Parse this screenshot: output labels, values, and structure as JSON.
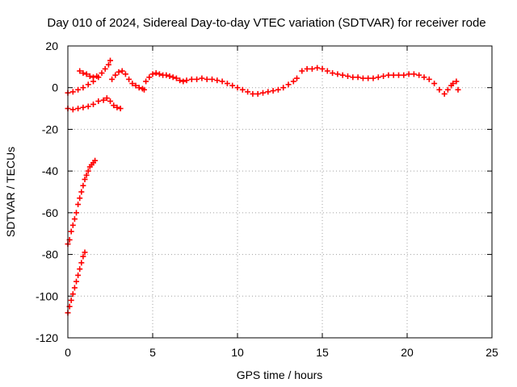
{
  "chart_data": {
    "type": "scatter",
    "title": "Day 010 of 2024, Sidereal Day-to-day VTEC variation (SDTVAR) for receiver rode",
    "xlabel": "GPS time / hours",
    "ylabel": "SDTVAR / TECUs",
    "xlim": [
      0,
      25
    ],
    "ylim": [
      -120,
      20
    ],
    "xticks": [
      0,
      5,
      10,
      15,
      20,
      25
    ],
    "yticks": [
      20,
      0,
      -20,
      -40,
      -60,
      -80,
      -100,
      -120
    ],
    "grid": true,
    "marker": "plus",
    "color": "#ff0000",
    "series": [
      {
        "points": [
          [
            0.0,
            -75
          ],
          [
            0.1,
            -73
          ],
          [
            0.2,
            -69
          ],
          [
            0.3,
            -66
          ],
          [
            0.4,
            -63
          ],
          [
            0.5,
            -60
          ],
          [
            0.6,
            -56
          ],
          [
            0.7,
            -53
          ],
          [
            0.8,
            -50
          ],
          [
            0.9,
            -47
          ],
          [
            1.0,
            -44
          ],
          [
            1.1,
            -42
          ],
          [
            1.2,
            -40
          ],
          [
            1.3,
            -38
          ],
          [
            1.4,
            -37
          ],
          [
            1.5,
            -36
          ],
          [
            1.6,
            -35
          ],
          [
            0.0,
            -108
          ],
          [
            0.1,
            -105
          ],
          [
            0.2,
            -102
          ],
          [
            0.3,
            -99
          ],
          [
            0.4,
            -96
          ],
          [
            0.5,
            -93
          ],
          [
            0.6,
            -90
          ],
          [
            0.7,
            -87
          ],
          [
            0.8,
            -84
          ],
          [
            0.9,
            -81
          ],
          [
            1.0,
            -79
          ],
          [
            0.0,
            -10
          ],
          [
            0.3,
            -10.5
          ],
          [
            0.6,
            -10
          ],
          [
            0.9,
            -9.5
          ],
          [
            1.2,
            -9
          ],
          [
            1.5,
            -8
          ],
          [
            1.8,
            -6.5
          ],
          [
            2.1,
            -6
          ],
          [
            2.3,
            -5
          ],
          [
            2.5,
            -6.5
          ],
          [
            2.7,
            -8.5
          ],
          [
            2.9,
            -9.5
          ],
          [
            3.1,
            -10
          ],
          [
            0.0,
            -2.5
          ],
          [
            0.3,
            -2
          ],
          [
            0.6,
            -1
          ],
          [
            0.9,
            0
          ],
          [
            1.2,
            1.5
          ],
          [
            1.5,
            3
          ],
          [
            1.8,
            5
          ],
          [
            2.0,
            7
          ],
          [
            2.2,
            9
          ],
          [
            2.4,
            11
          ],
          [
            2.5,
            13
          ],
          [
            0.7,
            8
          ],
          [
            0.9,
            7
          ],
          [
            1.1,
            6.5
          ],
          [
            1.3,
            5.5
          ],
          [
            1.5,
            5
          ],
          [
            1.7,
            5.5
          ],
          [
            2.6,
            4
          ],
          [
            2.8,
            6
          ],
          [
            3.0,
            7.5
          ],
          [
            3.2,
            8
          ],
          [
            3.4,
            6.5
          ],
          [
            3.6,
            4
          ],
          [
            3.8,
            2
          ],
          [
            4.0,
            1
          ],
          [
            4.2,
            0
          ],
          [
            4.4,
            -0.5
          ],
          [
            4.5,
            -1
          ],
          [
            4.6,
            3
          ],
          [
            4.8,
            5
          ],
          [
            5.0,
            6.5
          ],
          [
            5.2,
            7
          ],
          [
            5.4,
            6.5
          ],
          [
            5.6,
            6
          ],
          [
            5.8,
            6
          ],
          [
            6.0,
            5.5
          ],
          [
            6.2,
            5
          ],
          [
            6.4,
            4.5
          ],
          [
            6.6,
            3.5
          ],
          [
            6.8,
            3
          ],
          [
            7.0,
            3.5
          ],
          [
            7.3,
            4
          ],
          [
            7.6,
            4
          ],
          [
            7.9,
            4.5
          ],
          [
            8.2,
            4
          ],
          [
            8.5,
            4
          ],
          [
            8.8,
            3.5
          ],
          [
            9.1,
            3
          ],
          [
            9.4,
            2
          ],
          [
            9.7,
            1
          ],
          [
            10.0,
            0
          ],
          [
            10.3,
            -1
          ],
          [
            10.6,
            -2
          ],
          [
            10.9,
            -3
          ],
          [
            11.2,
            -3
          ],
          [
            11.5,
            -2.5
          ],
          [
            11.8,
            -2
          ],
          [
            12.1,
            -1.5
          ],
          [
            12.4,
            -1
          ],
          [
            12.7,
            0
          ],
          [
            13.0,
            1.5
          ],
          [
            13.3,
            3
          ],
          [
            13.5,
            4.5
          ],
          [
            13.8,
            8
          ],
          [
            14.1,
            9
          ],
          [
            14.4,
            9
          ],
          [
            14.7,
            9.5
          ],
          [
            15.0,
            9
          ],
          [
            15.3,
            8
          ],
          [
            15.6,
            7
          ],
          [
            15.9,
            6.5
          ],
          [
            16.2,
            6
          ],
          [
            16.5,
            5.5
          ],
          [
            16.8,
            5
          ],
          [
            17.1,
            5
          ],
          [
            17.4,
            4.5
          ],
          [
            17.7,
            4.5
          ],
          [
            18.0,
            4.5
          ],
          [
            18.3,
            5
          ],
          [
            18.6,
            5.5
          ],
          [
            18.9,
            6
          ],
          [
            19.2,
            6
          ],
          [
            19.5,
            6
          ],
          [
            19.8,
            6
          ],
          [
            20.1,
            6.5
          ],
          [
            20.4,
            6.5
          ],
          [
            20.7,
            6
          ],
          [
            21.0,
            5
          ],
          [
            21.3,
            4
          ],
          [
            21.6,
            2
          ],
          [
            21.9,
            -1
          ],
          [
            22.2,
            -3
          ],
          [
            22.4,
            -1
          ],
          [
            22.6,
            1
          ],
          [
            22.7,
            2
          ],
          [
            22.9,
            3
          ],
          [
            23.0,
            -1
          ]
        ]
      }
    ]
  }
}
